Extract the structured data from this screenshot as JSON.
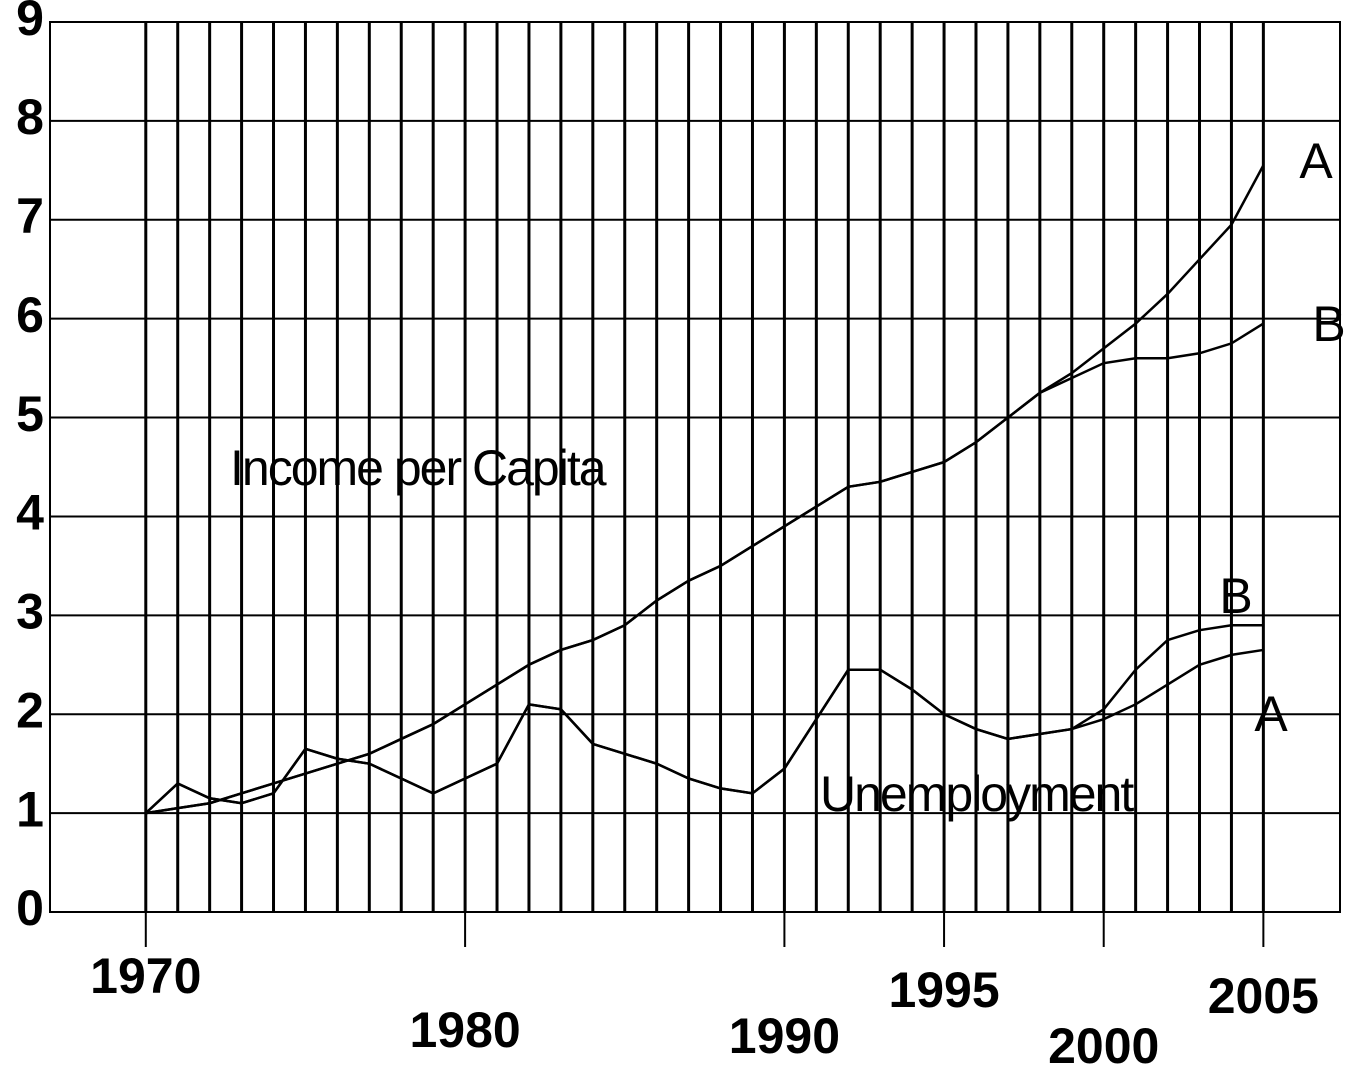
{
  "chart_data": {
    "type": "line",
    "x": [
      1970,
      1971,
      1972,
      1973,
      1974,
      1975,
      1976,
      1977,
      1978,
      1979,
      1980,
      1981,
      1982,
      1983,
      1984,
      1985,
      1986,
      1987,
      1988,
      1989,
      1990,
      1991,
      1992,
      1993,
      1994,
      1995,
      1996,
      1997,
      1998,
      1999,
      2000,
      2001,
      2002,
      2003,
      2004,
      2005
    ],
    "series": [
      {
        "name": "A",
        "color": "#000000",
        "values": [
          1.0,
          1.05,
          1.1,
          1.2,
          1.3,
          1.4,
          1.5,
          1.6,
          1.75,
          1.9,
          2.1,
          2.3,
          2.5,
          2.65,
          2.75,
          2.9,
          3.15,
          3.35,
          3.5,
          3.7,
          3.9,
          4.1,
          4.3,
          4.35,
          4.45,
          4.55,
          4.75,
          5.0,
          5.25,
          5.45,
          5.7,
          5.95,
          6.25,
          6.6,
          6.95,
          7.55
        ]
      },
      {
        "name": "B",
        "color": "#000000",
        "values": [
          1.0,
          1.05,
          1.1,
          1.2,
          1.3,
          1.4,
          1.5,
          1.6,
          1.75,
          1.9,
          2.1,
          2.3,
          2.5,
          2.65,
          2.75,
          2.9,
          3.15,
          3.35,
          3.5,
          3.7,
          3.9,
          4.1,
          4.3,
          4.35,
          4.45,
          4.55,
          4.75,
          5.0,
          5.25,
          5.4,
          5.55,
          5.6,
          5.6,
          5.65,
          5.75,
          5.95
        ]
      },
      {
        "name": "B",
        "color": "#000000",
        "values": [
          1.0,
          1.3,
          1.15,
          1.1,
          1.2,
          1.65,
          1.55,
          1.5,
          1.35,
          1.2,
          1.35,
          1.5,
          2.1,
          2.05,
          1.7,
          1.6,
          1.5,
          1.35,
          1.25,
          1.2,
          1.45,
          1.95,
          2.45,
          2.45,
          2.25,
          2.0,
          1.85,
          1.75,
          1.8,
          1.85,
          2.05,
          2.45,
          2.75,
          2.85,
          2.9,
          2.9
        ]
      },
      {
        "name": "A",
        "color": "#000000",
        "values": [
          1.0,
          1.3,
          1.15,
          1.1,
          1.2,
          1.65,
          1.55,
          1.5,
          1.35,
          1.2,
          1.35,
          1.5,
          2.1,
          2.05,
          1.7,
          1.6,
          1.5,
          1.35,
          1.25,
          1.2,
          1.45,
          1.95,
          2.45,
          2.45,
          2.25,
          2.0,
          1.85,
          1.75,
          1.8,
          1.85,
          1.95,
          2.1,
          2.3,
          2.5,
          2.6,
          2.65
        ]
      }
    ],
    "annotations": [
      "Income per Capita",
      "Unemployment"
    ],
    "xlim": [
      1967,
      2007.4
    ],
    "ylim": [
      0,
      9
    ],
    "xticks": [
      1970,
      1980,
      1990,
      1995,
      2000,
      2005
    ],
    "yticks": [
      0,
      1,
      2,
      3,
      4,
      5,
      6,
      7,
      8,
      9
    ],
    "grid": true
  }
}
